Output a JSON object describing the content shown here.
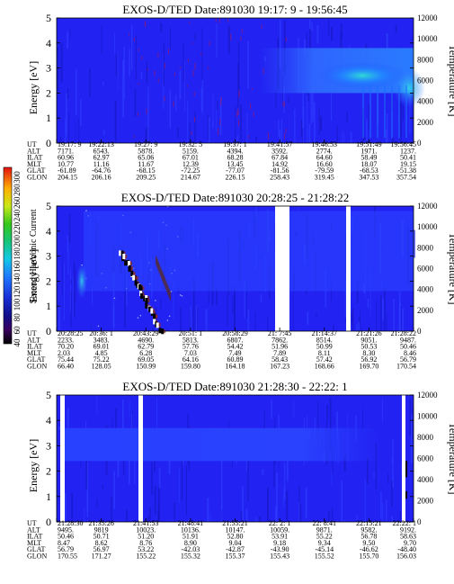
{
  "colorbar": {
    "label": "Second Harmonic Current",
    "ticks": [
      "40",
      "60",
      "80",
      "100",
      "120",
      "140",
      "160",
      "180",
      "200",
      "220",
      "240",
      "260",
      "280",
      "300"
    ]
  },
  "chart_data": [
    {
      "type": "heatmap",
      "title": "EXOS-D/TED   Date:891030  19:17: 9 - 19:56:45",
      "ylabel": "Energy [eV]",
      "ylim": [
        0,
        5
      ],
      "yticks": [
        "0",
        "1",
        "2",
        "3",
        "4",
        "5"
      ],
      "y2label": "Temperature [K]",
      "y2lim": [
        0,
        12000
      ],
      "y2ticks": [
        "0",
        "2000",
        "4000",
        "6000",
        "8000",
        "10000",
        "12000"
      ],
      "rows": [
        "UT",
        "ALT",
        "ILAT",
        "MLT",
        "GLAT",
        "GLON"
      ],
      "columns": [
        [
          "19:17: 9",
          "7171.",
          "60.96",
          "10.77",
          "-61.89",
          "204.15"
        ],
        [
          "19:22:13",
          "6543.",
          "62.97",
          "11.16",
          "-64.76",
          "206.16"
        ],
        [
          "19:27: 9",
          "5878.",
          "65.06",
          "11.67",
          "-68.15",
          "209.25"
        ],
        [
          "19:32: 5",
          "5159.",
          "67.01",
          "12.39",
          "-72.25",
          "214.67"
        ],
        [
          "19:37: 1",
          "4394.",
          "68.28",
          "13.45",
          "-77.07",
          "226.15"
        ],
        [
          "19:41:57",
          "3592.",
          "67.84",
          "14.92",
          "-81.56",
          "258.43"
        ],
        [
          "19:46:53",
          "2774.",
          "64.60",
          "16.60",
          "-79.59",
          "319.45"
        ],
        [
          "19:51:49",
          "1971.",
          "58.49",
          "18.07",
          "-68.53",
          "347.53"
        ],
        [
          "19:56:45",
          "1237.",
          "50.41",
          "19.15",
          "-51.38",
          "357.54"
        ]
      ],
      "gaps": []
    },
    {
      "type": "heatmap",
      "title": "EXOS-D/TED   Date:891030  20:28:25 - 21:28:22",
      "ylabel": "Energy [eV]",
      "ylim": [
        0,
        5
      ],
      "yticks": [
        "0",
        "1",
        "2",
        "3",
        "4",
        "5"
      ],
      "y2label": "Temperature [K]",
      "y2lim": [
        0,
        12000
      ],
      "y2ticks": [
        "0",
        "2000",
        "4000",
        "6000",
        "8000",
        "10000",
        "12000"
      ],
      "rows": [
        "UT",
        "ALT",
        "ILAT",
        "MLT",
        "GLAT",
        "GLON"
      ],
      "columns": [
        [
          "20:28:25",
          "2233.",
          "70.20",
          "2.03",
          "75.44",
          "66.40"
        ],
        [
          "20:36: 1",
          "3483.",
          "69.01",
          "4.85",
          "75.22",
          "128.05"
        ],
        [
          "20:43:29",
          "4690.",
          "62.79",
          "6.28",
          "69.05",
          "150.99"
        ],
        [
          "20:51: 1",
          "5813.",
          "57.76",
          "7.03",
          "64.16",
          "159.80"
        ],
        [
          "20:58:29",
          "6807.",
          "54.42",
          "7.49",
          "60.89",
          "164.18"
        ],
        [
          "21: 7:45",
          "7862.",
          "51.96",
          "7.89",
          "58.43",
          "167.23"
        ],
        [
          "21:14:37",
          "8514.",
          "50.99",
          "8.11",
          "57.42",
          "168.66"
        ],
        [
          "21:21:26",
          "9051.",
          "50.53",
          "8.30",
          "56.92",
          "169.70"
        ],
        [
          "21:28:22",
          "9487.",
          "50.46",
          "8.46",
          "56.79",
          "170.54"
        ]
      ],
      "gaps": [
        "21: 7:45",
        "21:14:37"
      ]
    },
    {
      "type": "heatmap",
      "title": "EXOS-D/TED   Date:891030  21:28:30 - 22:22: 1",
      "ylabel": "Energy [eV]",
      "ylim": [
        0,
        5
      ],
      "yticks": [
        "0",
        "1",
        "2",
        "3",
        "4",
        "5"
      ],
      "y2label": "Temperature [K]",
      "y2lim": [
        0,
        12000
      ],
      "y2ticks": [
        "0",
        "2000",
        "4000",
        "6000",
        "8000",
        "10000",
        "12000"
      ],
      "rows": [
        "UT",
        "ALT",
        "ILAT",
        "MLT",
        "GLAT",
        "GLON"
      ],
      "columns": [
        [
          "21:28:30",
          "9495.",
          "50.46",
          "8.47",
          "56.79",
          "170.55"
        ],
        [
          "21:35:26",
          "9819",
          "50.71",
          "8.62",
          "56.97",
          "171.27"
        ],
        [
          "21:41:53",
          "10023.",
          "51.20",
          "8.76",
          "53.22",
          "155.22"
        ],
        [
          "21:48:41",
          "10136.",
          "51.91",
          "8.90",
          "-42.03",
          "155.32"
        ],
        [
          "21:55:21",
          "10147.",
          "52.80",
          "9.04",
          "-42.87",
          "155.37"
        ],
        [
          "22: 2: 1",
          "10059.",
          "53.91",
          "9.18",
          "-43.90",
          "155.43"
        ],
        [
          "22: 8:41",
          "9871.",
          "55.22",
          "9.34",
          "-45.14",
          "155.52"
        ],
        [
          "22:15:21",
          "9582.",
          "56.78",
          "9.50",
          "-46.62",
          "155.70"
        ],
        [
          "22:22: 1",
          "9192.",
          "58.63",
          "9.70",
          "-48.40",
          "156.03"
        ]
      ],
      "gaps": [
        "21:28:30",
        "21:41:53",
        "22:22: 1"
      ]
    }
  ]
}
